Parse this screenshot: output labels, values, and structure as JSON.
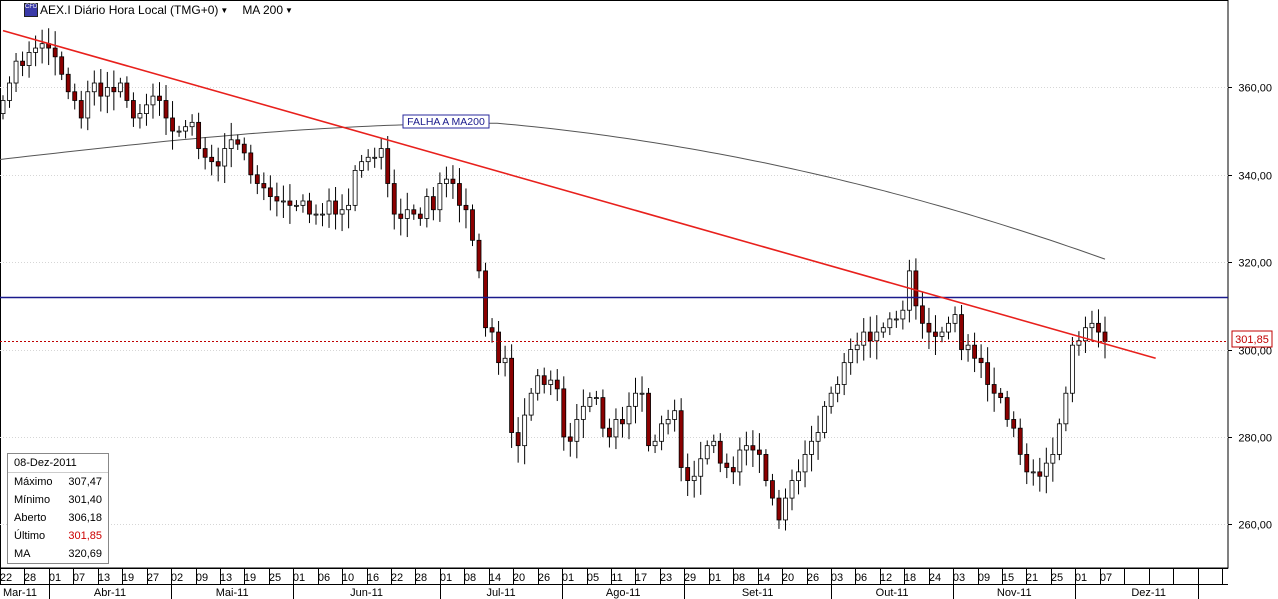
{
  "header": {
    "instrument_label": "AEX.I Diário Hora Local (TMG+0)",
    "indicator_label": "MA 200",
    "icon": "cfd-icon"
  },
  "colors": {
    "up_candle": "#ffffff",
    "down_candle": "#8b0000",
    "candle_outline": "#000000",
    "trendline": "#e8201c",
    "support_line": "#1a1a8c",
    "last_price_line": "#c00000",
    "ma_line": "#555555",
    "grid": "#d6d6d6"
  },
  "chart_data": {
    "type": "candlestick",
    "title": "AEX.I Diário Hora Local (TMG+0)",
    "ylim": [
      250,
      380
    ],
    "y_ticks": [
      "260,00",
      "280,00",
      "300,00",
      "320,00",
      "340,00",
      "360,00"
    ],
    "y_tick_values": [
      260,
      280,
      300,
      320,
      340,
      360
    ],
    "grid": true,
    "x_day_labels": [
      "22",
      "28",
      "01",
      "07",
      "13",
      "19",
      "27",
      "02",
      "09",
      "13",
      "19",
      "25",
      "01",
      "06",
      "10",
      "16",
      "22",
      "28",
      "01",
      "08",
      "14",
      "20",
      "26",
      "01",
      "05",
      "11",
      "17",
      "23",
      "29",
      "01",
      "08",
      "14",
      "20",
      "26",
      "03",
      "06",
      "12",
      "18",
      "24",
      "03",
      "09",
      "15",
      "21",
      "25",
      "01",
      "07"
    ],
    "x_month_labels": [
      "Mar-11",
      "Abr-11",
      "Mai-11",
      "Jun-11",
      "Jul-11",
      "Ago-11",
      "Set-11",
      "Out-11",
      "Nov-11",
      "Dez-11"
    ],
    "trendline": {
      "from": {
        "date": "2011-03-22",
        "value": 373
      },
      "to": {
        "date": "2011-12-20",
        "value": 298
      }
    },
    "support_level": 312,
    "last_price": 301.85,
    "last_price_label": "301,85",
    "annotation": "FALHA A MA200",
    "ma200": {
      "name": "MA 200",
      "start": 343.5,
      "peak": 351.8,
      "end": 320.69
    },
    "info_box": {
      "date": "08-Dez-2011",
      "rows": [
        {
          "label": "Máximo",
          "value": "307,47"
        },
        {
          "label": "Mínimo",
          "value": "301,40"
        },
        {
          "label": "Aberto",
          "value": "306,18"
        },
        {
          "label": "Último",
          "value": "301,85"
        },
        {
          "label": "MA",
          "value": "320,69"
        }
      ]
    },
    "closes": [
      357,
      361,
      366,
      365,
      368,
      369,
      370,
      369,
      367,
      363,
      359,
      357,
      353,
      359,
      361,
      358,
      360,
      359,
      361,
      357,
      353,
      354,
      356,
      358,
      357,
      353,
      350,
      350,
      351,
      352,
      346,
      344,
      343,
      342,
      346,
      348,
      347,
      345,
      340,
      338,
      337,
      335,
      334,
      334,
      333,
      333,
      334,
      331,
      331,
      331,
      334,
      331,
      332,
      333,
      341,
      343,
      344,
      344,
      346,
      338,
      331,
      330,
      332,
      331,
      330,
      335,
      332,
      338,
      339,
      338,
      333,
      332,
      325,
      318,
      305,
      304,
      297,
      298,
      281,
      278,
      285,
      290,
      294,
      292,
      293,
      291,
      280,
      279,
      284,
      287,
      289,
      289,
      282,
      280,
      284,
      283,
      287,
      290,
      290,
      278,
      279,
      283,
      284,
      286,
      273,
      270,
      271,
      275,
      278,
      279,
      274,
      273,
      272,
      277,
      278,
      277,
      276,
      270,
      266,
      261,
      266,
      270,
      272,
      276,
      279,
      281,
      287,
      290,
      292,
      297,
      300,
      301,
      304,
      302,
      304,
      305,
      307,
      307,
      309,
      318,
      310,
      306,
      304,
      303,
      304,
      306,
      308,
      300,
      301,
      298,
      297,
      292,
      290,
      289,
      284,
      282,
      276,
      272,
      272,
      271,
      274,
      276,
      283,
      290,
      301,
      302,
      305,
      306,
      304,
      301.85
    ]
  }
}
